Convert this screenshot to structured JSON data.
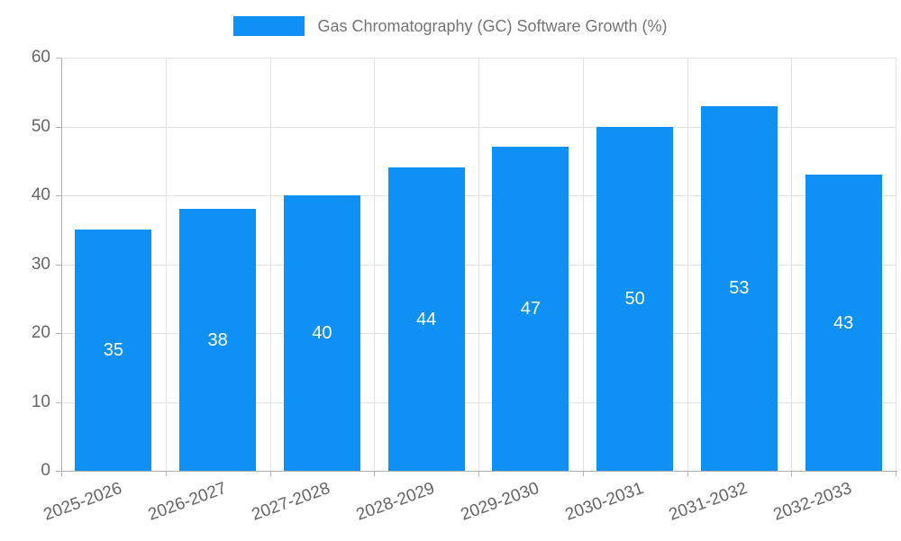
{
  "legend": {
    "label": "Gas Chromatography (GC) Software Growth (%)"
  },
  "colors": {
    "bar": "#0e90f4",
    "grid": "#e3e3e3",
    "axis": "#b0b0b0",
    "tick": "#b5b5b5",
    "axis_text": "#666666",
    "legend_text": "#757575",
    "value_text": "#ffffff"
  },
  "chart_data": {
    "type": "bar",
    "title": "Gas Chromatography (GC) Software Growth (%)",
    "categories": [
      "2025-2026",
      "2026-2027",
      "2027-2028",
      "2028-2029",
      "2029-2030",
      "2030-2031",
      "2031-2032",
      "2032-2033"
    ],
    "values": [
      35,
      38,
      40,
      44,
      47,
      50,
      53,
      43
    ],
    "xlabel": "",
    "ylabel": "",
    "ylim": [
      0,
      60
    ],
    "ytick_step": 10,
    "ytick_labels": [
      "0",
      "10",
      "20",
      "30",
      "40",
      "50",
      "60"
    ],
    "grid": true,
    "legend_position": "top",
    "value_label_position": "inside-center",
    "x_label_rotation_deg": -20
  }
}
